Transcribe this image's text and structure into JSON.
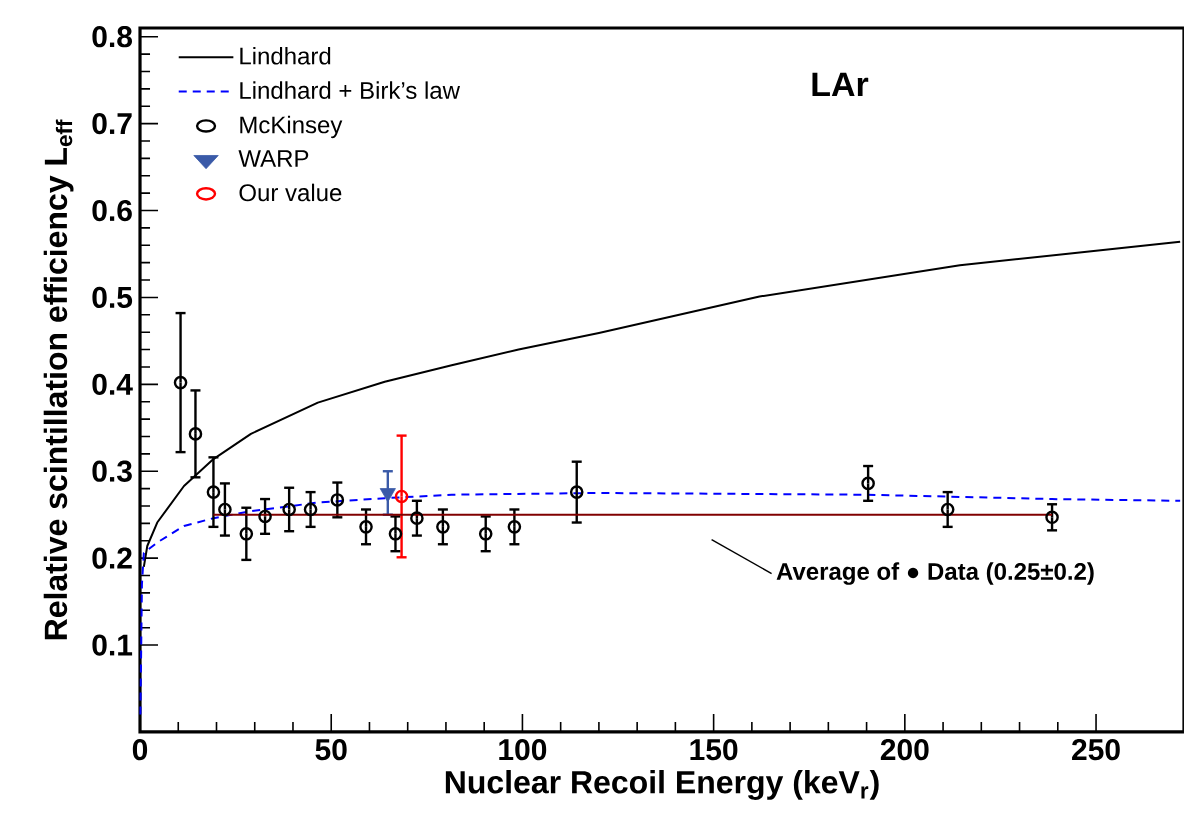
{
  "chart_data": {
    "type": "line",
    "xlabel": "Nuclear Recoil Energy (keV$_{r}$)",
    "ylabel": "Relative scintillation efficiency  L$_{eff}$",
    "xlim": [
      0,
      273
    ],
    "ylim": [
      0,
      0.81
    ],
    "xticks": [
      0,
      50,
      100,
      150,
      200,
      250
    ],
    "yticks": [
      0.1,
      0.2,
      0.3,
      0.4,
      0.5,
      0.6,
      0.7,
      0.8
    ],
    "legend": "top left",
    "grid": false,
    "annotations": [
      "LAr",
      "Average of ● Data (0.25±0.2)"
    ],
    "series": [
      {
        "name": "Lindhard",
        "color": "#000000",
        "line_style": "solid",
        "marker": "none",
        "x": [
          1,
          1.9,
          4.5,
          11.5,
          19.2,
          29,
          46.5,
          64,
          81.5,
          99,
          120,
          162,
          214.4,
          272
        ],
        "values": [
          0.19,
          0.214,
          0.241,
          0.283,
          0.314,
          0.343,
          0.379,
          0.403,
          0.422,
          0.44,
          0.459,
          0.501,
          0.537,
          0.564
        ]
      },
      {
        "name": "Lindhard + Birk’s law",
        "color": "#0000ff",
        "line_style": "dashed",
        "marker": "none",
        "x": [
          0.1,
          0.5,
          1,
          4.5,
          11.5,
          19.2,
          29,
          46.5,
          64,
          81.5,
          120,
          190,
          238.5,
          272
        ],
        "values": [
          0.02,
          0.17,
          0.206,
          0.218,
          0.237,
          0.246,
          0.254,
          0.264,
          0.269,
          0.273,
          0.275,
          0.273,
          0.268,
          0.266
        ]
      },
      {
        "name": "McKinsey",
        "type": "scatter",
        "color": "#000000",
        "marker": "circle",
        "x": [
          10.6,
          14.5,
          19.2,
          22.2,
          27.8,
          32.7,
          39,
          44.6,
          51.6,
          59.1,
          66.8,
          72.4,
          79.2,
          90.4,
          97.9,
          114.2,
          190.4,
          211.2,
          238.5
        ],
        "values": [
          0.402,
          0.343,
          0.276,
          0.256,
          0.228,
          0.248,
          0.256,
          0.256,
          0.267,
          0.236,
          0.228,
          0.246,
          0.236,
          0.228,
          0.236,
          0.276,
          0.286,
          0.256,
          0.247
        ],
        "errors": [
          0.08,
          0.05,
          0.04,
          0.03,
          0.03,
          0.02,
          0.025,
          0.02,
          0.02,
          0.02,
          0.02,
          0.02,
          0.02,
          0.02,
          0.02,
          0.035,
          0.02,
          0.02,
          0.015
        ]
      },
      {
        "name": "WARP",
        "type": "scatter",
        "color": "#3a5aa8",
        "marker": "triangle",
        "x": [
          64.8
        ],
        "values": [
          0.275
        ],
        "errors": [
          0.025
        ]
      },
      {
        "name": "Our value",
        "type": "scatter",
        "color": "#ff0000",
        "marker": "circle",
        "x": [
          68.4
        ],
        "values": [
          0.271
        ],
        "errors": [
          0.07
        ]
      },
      {
        "color": "#800000",
        "line_style": "solid",
        "marker": "none",
        "x": [
          19.2,
          238.5
        ],
        "values": [
          0.25,
          0.25
        ]
      }
    ]
  }
}
